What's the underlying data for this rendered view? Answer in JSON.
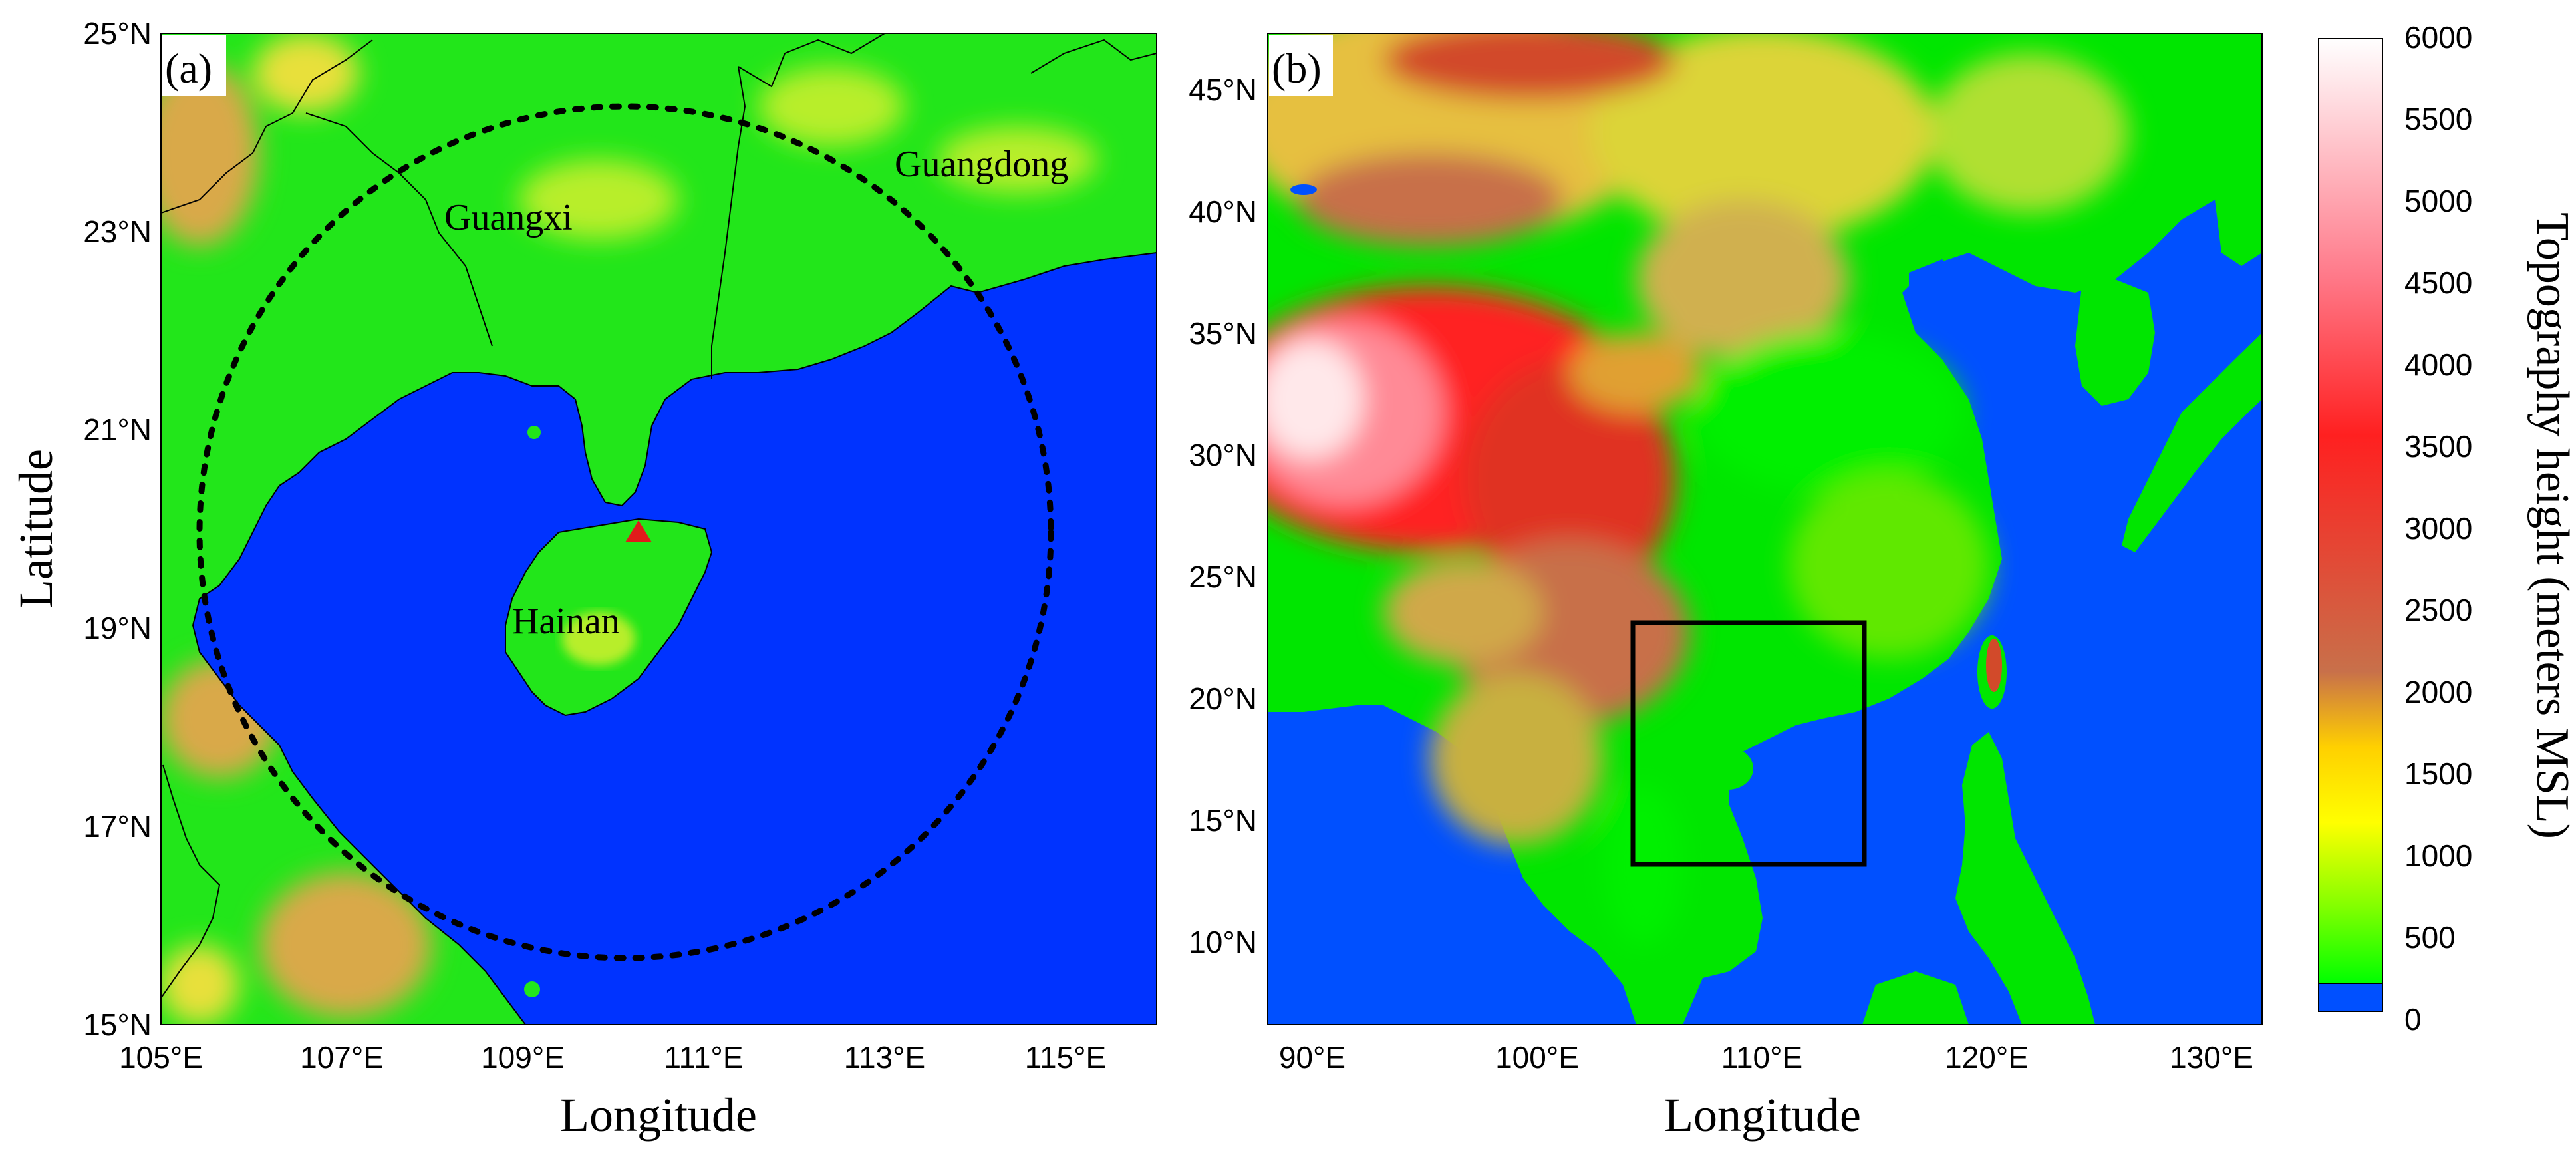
{
  "panel_a": {
    "label": "(a)",
    "x_ticks": [
      "105°E",
      "107°E",
      "109°E",
      "111°E",
      "113°E",
      "115°E"
    ],
    "y_ticks": [
      "15°N",
      "17°N",
      "19°N",
      "21°N",
      "23°N",
      "25°N"
    ],
    "xlabel": "Longitude",
    "ylabel": "Latitude",
    "places": {
      "guangxi": "Guangxi",
      "guangdong": "Guangdong",
      "hainan": "Hainan"
    },
    "radar_marker": "red-triangle",
    "colors": {
      "sea": "#0033ff",
      "land": "#22e61a",
      "highland": "#d9b04a",
      "radar": "#e11b1b"
    }
  },
  "panel_b": {
    "label": "(b)",
    "x_ticks": [
      "90°E",
      "100°E",
      "110°E",
      "120°E",
      "130°E"
    ],
    "y_ticks": [
      "10°N",
      "15°N",
      "20°N",
      "25°N",
      "30°N",
      "35°N",
      "40°N",
      "45°N"
    ],
    "xlabel": "Longitude",
    "domain_box": {
      "lon": [
        105,
        116
      ],
      "lat": [
        15,
        25
      ]
    }
  },
  "colorbar": {
    "title": "Topography height (meters MSL)",
    "ticks": [
      "6000",
      "5500",
      "5000",
      "4500",
      "4000",
      "3500",
      "3000",
      "2500",
      "2000",
      "1500",
      "1000",
      "500",
      "0"
    ],
    "colors": [
      "#ffffff",
      "#ff2020",
      "#c8704a",
      "#ffff00",
      "#00ff00",
      "#0050ff"
    ]
  }
}
